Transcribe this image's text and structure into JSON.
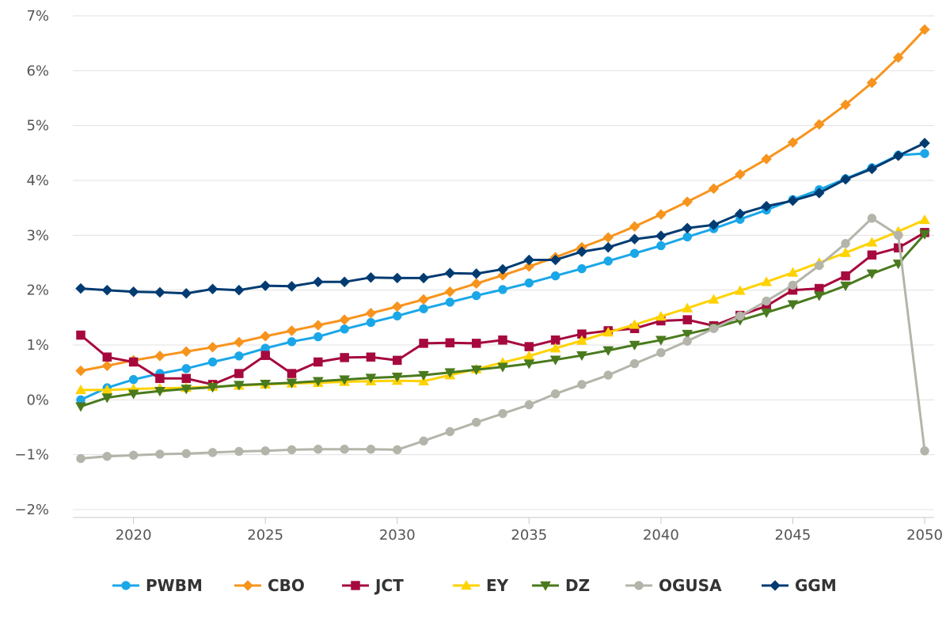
{
  "chart_data": {
    "type": "line",
    "title": "",
    "xlabel": "",
    "ylabel": "",
    "xlim": [
      2018,
      2050
    ],
    "ylim": [
      -2,
      7
    ],
    "x_ticks": [
      2020,
      2025,
      2030,
      2035,
      2040,
      2045,
      2050
    ],
    "x_tick_labels": [
      "2020",
      "2025",
      "2030",
      "2035",
      "2040",
      "2045",
      "2050"
    ],
    "y_ticks": [
      -2,
      -1,
      0,
      1,
      2,
      3,
      4,
      5,
      6,
      7
    ],
    "y_tick_labels": [
      "−2%",
      "−1%",
      "0%",
      "1%",
      "2%",
      "3%",
      "4%",
      "5%",
      "6%",
      "7%"
    ],
    "grid": "horizontal",
    "legend_position": "bottom",
    "x": [
      2018,
      2019,
      2020,
      2021,
      2022,
      2023,
      2024,
      2025,
      2026,
      2027,
      2028,
      2029,
      2030,
      2031,
      2032,
      2033,
      2034,
      2035,
      2036,
      2037,
      2038,
      2039,
      2040,
      2041,
      2042,
      2043,
      2044,
      2045,
      2046,
      2047,
      2048,
      2049,
      2050
    ],
    "series": [
      {
        "name": "PWBM",
        "color": "#1aa7e8",
        "marker": "circle",
        "values": [
          0.0,
          0.22,
          0.37,
          0.48,
          0.57,
          0.69,
          0.8,
          0.94,
          1.06,
          1.15,
          1.29,
          1.41,
          1.53,
          1.66,
          1.78,
          1.9,
          2.01,
          2.13,
          2.26,
          2.39,
          2.53,
          2.67,
          2.81,
          2.97,
          3.12,
          3.29,
          3.46,
          3.65,
          3.83,
          4.03,
          4.23,
          4.46,
          4.49
        ]
      },
      {
        "name": "CBO",
        "color": "#f7941d",
        "marker": "diamond",
        "values": [
          0.53,
          0.62,
          0.72,
          0.8,
          0.88,
          0.96,
          1.05,
          1.16,
          1.26,
          1.36,
          1.46,
          1.58,
          1.7,
          1.83,
          1.97,
          2.12,
          2.27,
          2.43,
          2.6,
          2.78,
          2.96,
          3.16,
          3.38,
          3.61,
          3.85,
          4.11,
          4.39,
          4.69,
          5.02,
          5.38,
          5.78,
          6.24,
          6.75
        ]
      },
      {
        "name": "JCT",
        "color": "#a6093d",
        "marker": "square",
        "values": [
          1.18,
          0.78,
          0.69,
          0.39,
          0.39,
          0.28,
          0.48,
          0.81,
          0.48,
          0.69,
          0.77,
          0.78,
          0.72,
          1.03,
          1.04,
          1.03,
          1.09,
          0.97,
          1.09,
          1.2,
          1.26,
          1.3,
          1.44,
          1.46,
          1.35,
          1.54,
          1.71,
          2.0,
          2.03,
          2.26,
          2.64,
          2.77,
          3.05
        ]
      },
      {
        "name": "EY",
        "color": "#ffd200",
        "marker": "triangle",
        "values": [
          0.18,
          0.18,
          0.2,
          0.21,
          0.22,
          0.24,
          0.26,
          0.28,
          0.3,
          0.31,
          0.33,
          0.34,
          0.35,
          0.34,
          0.45,
          0.56,
          0.68,
          0.8,
          0.94,
          1.08,
          1.23,
          1.37,
          1.52,
          1.67,
          1.83,
          1.99,
          2.15,
          2.32,
          2.5,
          2.68,
          2.87,
          3.07,
          3.28
        ]
      },
      {
        "name": "DZ",
        "color": "#4a7a1e",
        "marker": "triangle-down",
        "values": [
          -0.12,
          0.04,
          0.11,
          0.16,
          0.2,
          0.23,
          0.27,
          0.29,
          0.31,
          0.34,
          0.37,
          0.4,
          0.42,
          0.45,
          0.5,
          0.55,
          0.6,
          0.66,
          0.73,
          0.81,
          0.9,
          1.0,
          1.09,
          1.2,
          1.31,
          1.45,
          1.59,
          1.74,
          1.9,
          2.08,
          2.3,
          2.48,
          3.02
        ]
      },
      {
        "name": "OGUSA",
        "color": "#b4b5aa",
        "marker": "circle",
        "values": [
          -1.07,
          -1.03,
          -1.01,
          -0.99,
          -0.98,
          -0.96,
          -0.94,
          -0.93,
          -0.91,
          -0.9,
          -0.9,
          -0.9,
          -0.91,
          -0.75,
          -0.58,
          -0.41,
          -0.25,
          -0.09,
          0.11,
          0.28,
          0.45,
          0.66,
          0.86,
          1.07,
          1.3,
          1.53,
          1.8,
          2.09,
          2.45,
          2.85,
          3.31,
          3.0,
          -0.93
        ]
      },
      {
        "name": "GGM",
        "color": "#003b71",
        "marker": "diamond",
        "values": [
          2.03,
          2.0,
          1.97,
          1.96,
          1.94,
          2.02,
          2.0,
          2.08,
          2.07,
          2.15,
          2.15,
          2.23,
          2.22,
          2.22,
          2.31,
          2.3,
          2.38,
          2.55,
          2.55,
          2.7,
          2.78,
          2.93,
          2.99,
          3.13,
          3.19,
          3.39,
          3.53,
          3.63,
          3.77,
          4.02,
          4.21,
          4.45,
          4.68
        ]
      }
    ]
  }
}
